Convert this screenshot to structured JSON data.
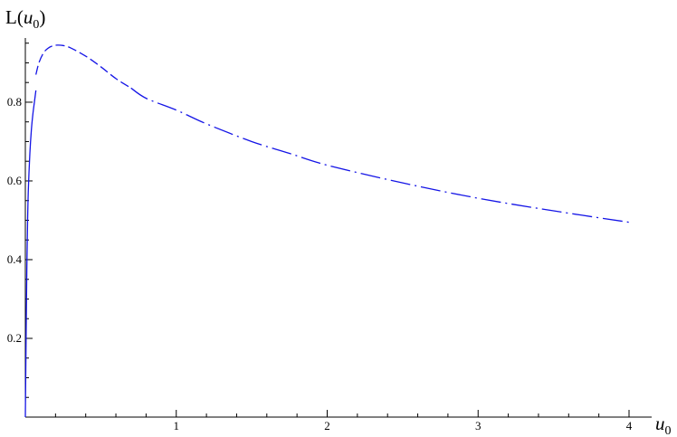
{
  "chart_data": {
    "type": "line",
    "xlabel": {
      "base": "u",
      "sub": "0"
    },
    "ylabel": {
      "prefix": "L(",
      "base": "u",
      "sub": "0",
      "suffix": ")"
    },
    "xlim": [
      0,
      4.2
    ],
    "ylim": [
      0,
      0.97
    ],
    "xticks": [
      1,
      2,
      3,
      4
    ],
    "xtick_labels": [
      "1",
      "2",
      "3",
      "4"
    ],
    "xminor_step": 0.2,
    "yticks": [
      0.2,
      0.4,
      0.6,
      0.8
    ],
    "ytick_labels": [
      "0.2",
      "0.4",
      "0.6",
      "0.8"
    ],
    "yminor_step": 0.05,
    "grid": false,
    "series": [
      {
        "style": "solid",
        "color": "#1414e6",
        "x": [
          0.0,
          0.005,
          0.01,
          0.015,
          0.02,
          0.03,
          0.04,
          0.05,
          0.06,
          0.07
        ],
        "y": [
          0.0,
          0.2,
          0.38,
          0.5,
          0.58,
          0.67,
          0.73,
          0.77,
          0.8,
          0.83
        ]
      },
      {
        "style": "dashed",
        "color": "#1414e6",
        "x": [
          0.07,
          0.09,
          0.12,
          0.15,
          0.18,
          0.21,
          0.25,
          0.3,
          0.4,
          0.5,
          0.6,
          0.7
        ],
        "y": [
          0.87,
          0.9,
          0.925,
          0.937,
          0.943,
          0.945,
          0.944,
          0.938,
          0.917,
          0.89,
          0.86,
          0.836
        ]
      },
      {
        "style": "dashdot",
        "color": "#1414e6",
        "x": [
          0.7,
          0.8,
          1.0,
          1.2,
          1.5,
          1.75,
          2.0,
          2.5,
          3.0,
          3.5,
          4.0
        ],
        "y": [
          0.836,
          0.81,
          0.78,
          0.745,
          0.7,
          0.67,
          0.64,
          0.595,
          0.556,
          0.524,
          0.495
        ]
      }
    ]
  }
}
